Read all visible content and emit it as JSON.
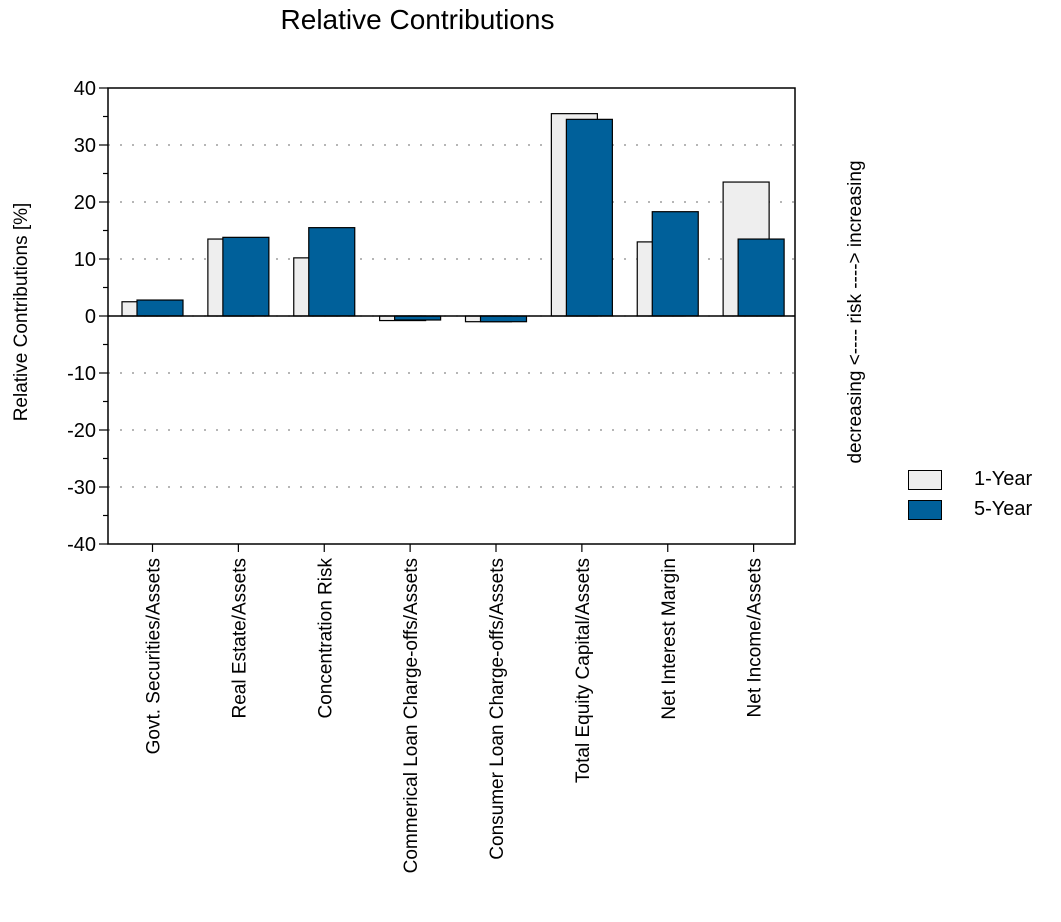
{
  "chart_data": {
    "type": "bar",
    "title": "Relative Contributions",
    "ylabel": "Relative Contributions [%]",
    "side_label": "decreasing <---- risk ----> increasing",
    "ylim": [
      -40,
      40
    ],
    "yticks": [
      -40,
      -30,
      -20,
      -10,
      0,
      10,
      20,
      30,
      40
    ],
    "grid": true,
    "legend_position": "right",
    "categories": [
      "Govt. Securities/Assets",
      "Real Estate/Assets",
      "Concentration Risk",
      "Commerical Loan Charge-offs/Assets",
      "Consumer Loan Charge-offs/Assets",
      "Total Equity Capital/Assets",
      "Net Interest Margin",
      "Net Income/Assets"
    ],
    "series": [
      {
        "name": "1-Year",
        "color": "#eeeeee",
        "values": [
          2.5,
          13.5,
          10.2,
          -0.8,
          -1.0,
          35.5,
          13.0,
          23.5
        ]
      },
      {
        "name": "5-Year",
        "color": "#00609a",
        "values": [
          2.8,
          13.8,
          15.5,
          -0.7,
          -1.0,
          34.5,
          18.3,
          13.5
        ]
      }
    ]
  }
}
